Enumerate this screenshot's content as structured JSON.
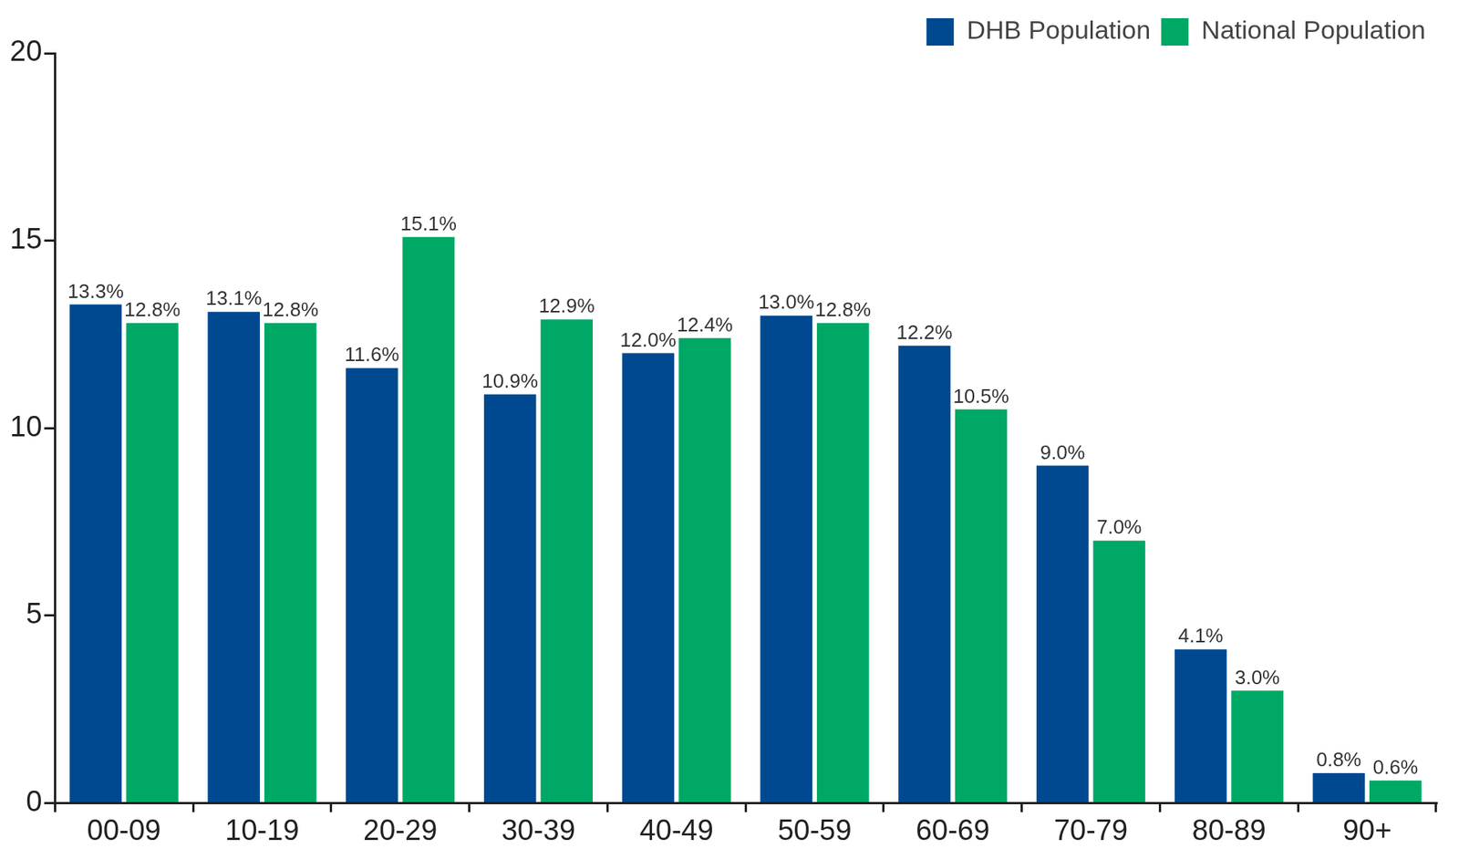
{
  "chart_data": {
    "type": "bar",
    "categories": [
      "00-09",
      "10-19",
      "20-29",
      "30-39",
      "40-49",
      "50-59",
      "60-69",
      "70-79",
      "80-89",
      "90+"
    ],
    "series": [
      {
        "name": "DHB Population",
        "color": "#004990",
        "values": [
          13.3,
          13.1,
          11.6,
          10.9,
          12.0,
          13.0,
          12.2,
          9.0,
          4.1,
          0.8
        ],
        "value_labels": [
          "13.3%",
          "13.1%",
          "11.6%",
          "10.9%",
          "12.0%",
          "13.0%",
          "12.2%",
          "9.0%",
          "4.1%",
          "0.8%"
        ]
      },
      {
        "name": "National Population",
        "color": "#00a865",
        "values": [
          12.8,
          12.8,
          15.1,
          12.9,
          12.4,
          12.8,
          10.5,
          7.0,
          3.0,
          0.6
        ],
        "value_labels": [
          "12.8%",
          "12.8%",
          "15.1%",
          "12.9%",
          "12.4%",
          "12.8%",
          "10.5%",
          "7.0%",
          "3.0%",
          "0.6%"
        ]
      }
    ],
    "ylim": [
      0,
      20
    ],
    "yticks": [
      0,
      5,
      10,
      15,
      20
    ],
    "grid": false,
    "legend": "upper right",
    "data_labels": true
  }
}
